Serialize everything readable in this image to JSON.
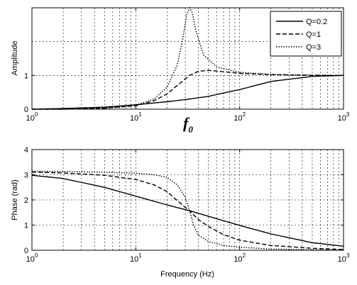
{
  "chart_data": [
    {
      "type": "line",
      "xscale": "log",
      "xlim": [
        1,
        1000
      ],
      "ylim": [
        0,
        3
      ],
      "xlabel": "",
      "ylabel": "Amplitude",
      "x_ticks": [
        1,
        10,
        100,
        1000
      ],
      "x_tick_labels": [
        {
          "base": "10",
          "exp": "0"
        },
        {
          "base": "10",
          "exp": "1"
        },
        {
          "base": "10",
          "exp": "2"
        },
        {
          "base": "10",
          "exp": "3"
        }
      ],
      "y_ticks": [
        0,
        1
      ],
      "y_tick_labels": [
        "0",
        "1"
      ],
      "grid": true,
      "legend": {
        "position": "top-right",
        "entries": [
          "Q=0.2",
          "Q=1",
          "Q=3"
        ]
      },
      "series": [
        {
          "name": "Q=0.2",
          "style": "solid",
          "x": [
            1,
            2,
            5,
            10,
            20,
            33,
            50,
            100,
            200,
            500,
            1000
          ],
          "y": [
            0.0,
            0.02,
            0.06,
            0.13,
            0.22,
            0.3,
            0.38,
            0.58,
            0.82,
            0.97,
            1.0
          ]
        },
        {
          "name": "Q=1",
          "style": "dashed",
          "x": [
            1,
            2,
            5,
            10,
            15,
            20,
            25,
            33,
            40,
            50,
            70,
            100,
            200,
            500,
            1000
          ],
          "y": [
            0.0,
            0.0,
            0.03,
            0.1,
            0.25,
            0.45,
            0.7,
            1.0,
            1.12,
            1.15,
            1.11,
            1.06,
            1.02,
            1.0,
            1.0
          ]
        },
        {
          "name": "Q=3",
          "style": "dotted",
          "x": [
            1,
            2,
            5,
            10,
            15,
            20,
            25,
            28,
            31,
            33,
            35,
            38,
            45,
            60,
            100,
            200,
            500,
            1000
          ],
          "y": [
            0.0,
            0.0,
            0.03,
            0.12,
            0.3,
            0.65,
            1.3,
            2.0,
            2.8,
            3.0,
            2.85,
            2.3,
            1.6,
            1.25,
            1.09,
            1.03,
            1.01,
            1.0
          ]
        }
      ],
      "annotation": {
        "text": "f",
        "subscript": "0"
      }
    },
    {
      "type": "line",
      "xscale": "log",
      "xlim": [
        1,
        1000
      ],
      "ylim": [
        0,
        4
      ],
      "xlabel": "Frequency (Hz)",
      "ylabel": "Phase (rad)",
      "x_ticks": [
        1,
        10,
        100,
        1000
      ],
      "x_tick_labels": [
        {
          "base": "10",
          "exp": "0"
        },
        {
          "base": "10",
          "exp": "1"
        },
        {
          "base": "10",
          "exp": "2"
        },
        {
          "base": "10",
          "exp": "3"
        }
      ],
      "y_ticks": [
        0,
        1,
        2,
        3,
        4
      ],
      "y_tick_labels": [
        "0",
        "1",
        "2",
        "3",
        "4"
      ],
      "grid": true,
      "series": [
        {
          "name": "Q=0.2",
          "style": "solid",
          "x": [
            1,
            2,
            5,
            10,
            20,
            33,
            50,
            100,
            200,
            500,
            1000
          ],
          "y": [
            2.98,
            2.85,
            2.5,
            2.15,
            1.8,
            1.57,
            1.35,
            0.99,
            0.65,
            0.3,
            0.16
          ]
        },
        {
          "name": "Q=1",
          "style": "dashed",
          "x": [
            1,
            2,
            5,
            10,
            15,
            20,
            25,
            30,
            33,
            40,
            50,
            70,
            100,
            200,
            500,
            1000
          ],
          "y": [
            3.11,
            3.07,
            2.98,
            2.81,
            2.6,
            2.33,
            1.98,
            1.7,
            1.57,
            1.22,
            0.95,
            0.62,
            0.4,
            0.19,
            0.08,
            0.03
          ]
        },
        {
          "name": "Q=3",
          "style": "dotted",
          "x": [
            1,
            2,
            5,
            10,
            15,
            20,
            25,
            30,
            33,
            36,
            40,
            50,
            70,
            100,
            200,
            500,
            1000
          ],
          "y": [
            3.14,
            3.13,
            3.1,
            3.06,
            3.0,
            2.9,
            2.6,
            2.1,
            1.57,
            1.0,
            0.6,
            0.35,
            0.19,
            0.12,
            0.05,
            0.02,
            0.01
          ]
        }
      ]
    }
  ]
}
